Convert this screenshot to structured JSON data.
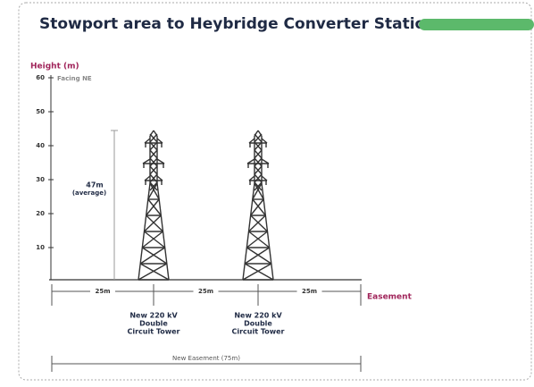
{
  "header": {
    "title": "Stowport area to Heybridge Converter Station"
  },
  "axis": {
    "label": "Height (m)",
    "note": "Facing NE",
    "ticks": [
      60,
      50,
      40,
      30,
      20,
      10
    ]
  },
  "height_label": {
    "value": "47m",
    "note": "(average)"
  },
  "spans": [
    "25m",
    "25m",
    "25m"
  ],
  "easement_label": "Easement",
  "towers": [
    {
      "label": [
        "New 220 kV",
        "Double",
        "Circuit Tower"
      ]
    },
    {
      "label": [
        "New 220 kV",
        "Double",
        "Circuit Tower"
      ]
    }
  ],
  "total": "New Easement (75m)"
}
